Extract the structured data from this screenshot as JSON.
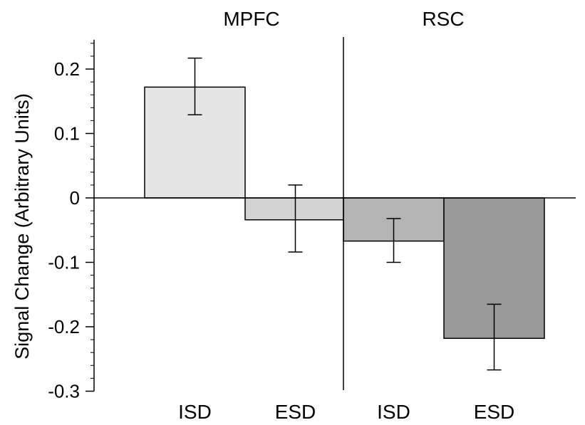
{
  "chart_data": {
    "type": "bar",
    "ylabel": "Signal Change (Arbitrary Units)",
    "ylim": [
      -0.3,
      0.25
    ],
    "yticks": [
      0.2,
      0.1,
      0,
      -0.1,
      -0.2,
      -0.3
    ],
    "ytick_labels": [
      "0.2",
      "0.1",
      "0",
      "-0.1",
      "-0.2",
      "-0.3"
    ],
    "groups": [
      {
        "name": "MPFC",
        "categories": [
          "ISD",
          "ESD"
        ]
      },
      {
        "name": "RSC",
        "categories": [
          "ISD",
          "ESD"
        ]
      }
    ],
    "bars": [
      {
        "group": "MPFC",
        "category": "ISD",
        "value": 0.172,
        "err_low": 0.129,
        "err_high": 0.217,
        "color": "#e5e5e5"
      },
      {
        "group": "MPFC",
        "category": "ESD",
        "value": -0.034,
        "err_low": -0.084,
        "err_high": 0.02,
        "color": "#d2d2d2"
      },
      {
        "group": "RSC",
        "category": "ISD",
        "value": -0.067,
        "err_low": -0.1,
        "err_high": -0.032,
        "color": "#b4b4b4"
      },
      {
        "group": "RSC",
        "category": "ESD",
        "value": -0.218,
        "err_low": -0.267,
        "err_high": -0.165,
        "color": "#999999"
      }
    ],
    "grid": false,
    "legend": "none"
  }
}
